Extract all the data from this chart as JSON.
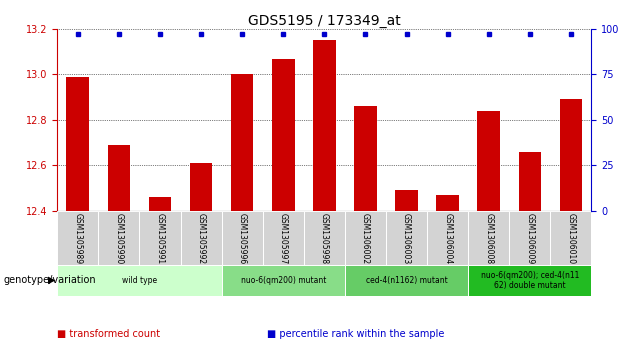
{
  "title": "GDS5195 / 173349_at",
  "samples": [
    "GSM1305989",
    "GSM1305990",
    "GSM1305991",
    "GSM1305992",
    "GSM1305996",
    "GSM1305997",
    "GSM1305998",
    "GSM1306002",
    "GSM1306003",
    "GSM1306004",
    "GSM1306008",
    "GSM1306009",
    "GSM1306010"
  ],
  "bar_values": [
    12.99,
    12.69,
    12.46,
    12.61,
    13.0,
    13.07,
    13.15,
    12.86,
    12.49,
    12.47,
    12.84,
    12.66,
    12.89
  ],
  "percentile_values": [
    100,
    100,
    100,
    100,
    100,
    100,
    100,
    100,
    100,
    100,
    100,
    100,
    100
  ],
  "percentile_show": [
    true,
    true,
    true,
    true,
    true,
    true,
    true,
    true,
    true,
    true,
    true,
    true,
    true
  ],
  "ylim_left": [
    12.4,
    13.2
  ],
  "ylim_right": [
    0,
    100
  ],
  "yticks_left": [
    12.4,
    12.6,
    12.8,
    13.0,
    13.2
  ],
  "yticks_right": [
    0,
    25,
    50,
    75,
    100
  ],
  "bar_color": "#cc0000",
  "percentile_color": "#0000cc",
  "grid_color": "#000000",
  "bg_plot": "#ffffff",
  "groups": [
    {
      "label": "wild type",
      "start": 0,
      "end": 3,
      "color": "#ccffcc"
    },
    {
      "label": "nuo-6(qm200) mutant",
      "start": 4,
      "end": 6,
      "color": "#88dd88"
    },
    {
      "label": "ced-4(n1162) mutant",
      "start": 7,
      "end": 9,
      "color": "#66cc66"
    },
    {
      "label": "nuo-6(qm200); ced-4(n11\n62) double mutant",
      "start": 10,
      "end": 12,
      "color": "#22bb22"
    }
  ],
  "genotype_label": "genotype/variation",
  "legend_items": [
    {
      "label": "transformed count",
      "color": "#cc0000"
    },
    {
      "label": "percentile rank within the sample",
      "color": "#0000cc"
    }
  ],
  "title_fontsize": 10,
  "tick_fontsize": 7,
  "bar_width": 0.55
}
